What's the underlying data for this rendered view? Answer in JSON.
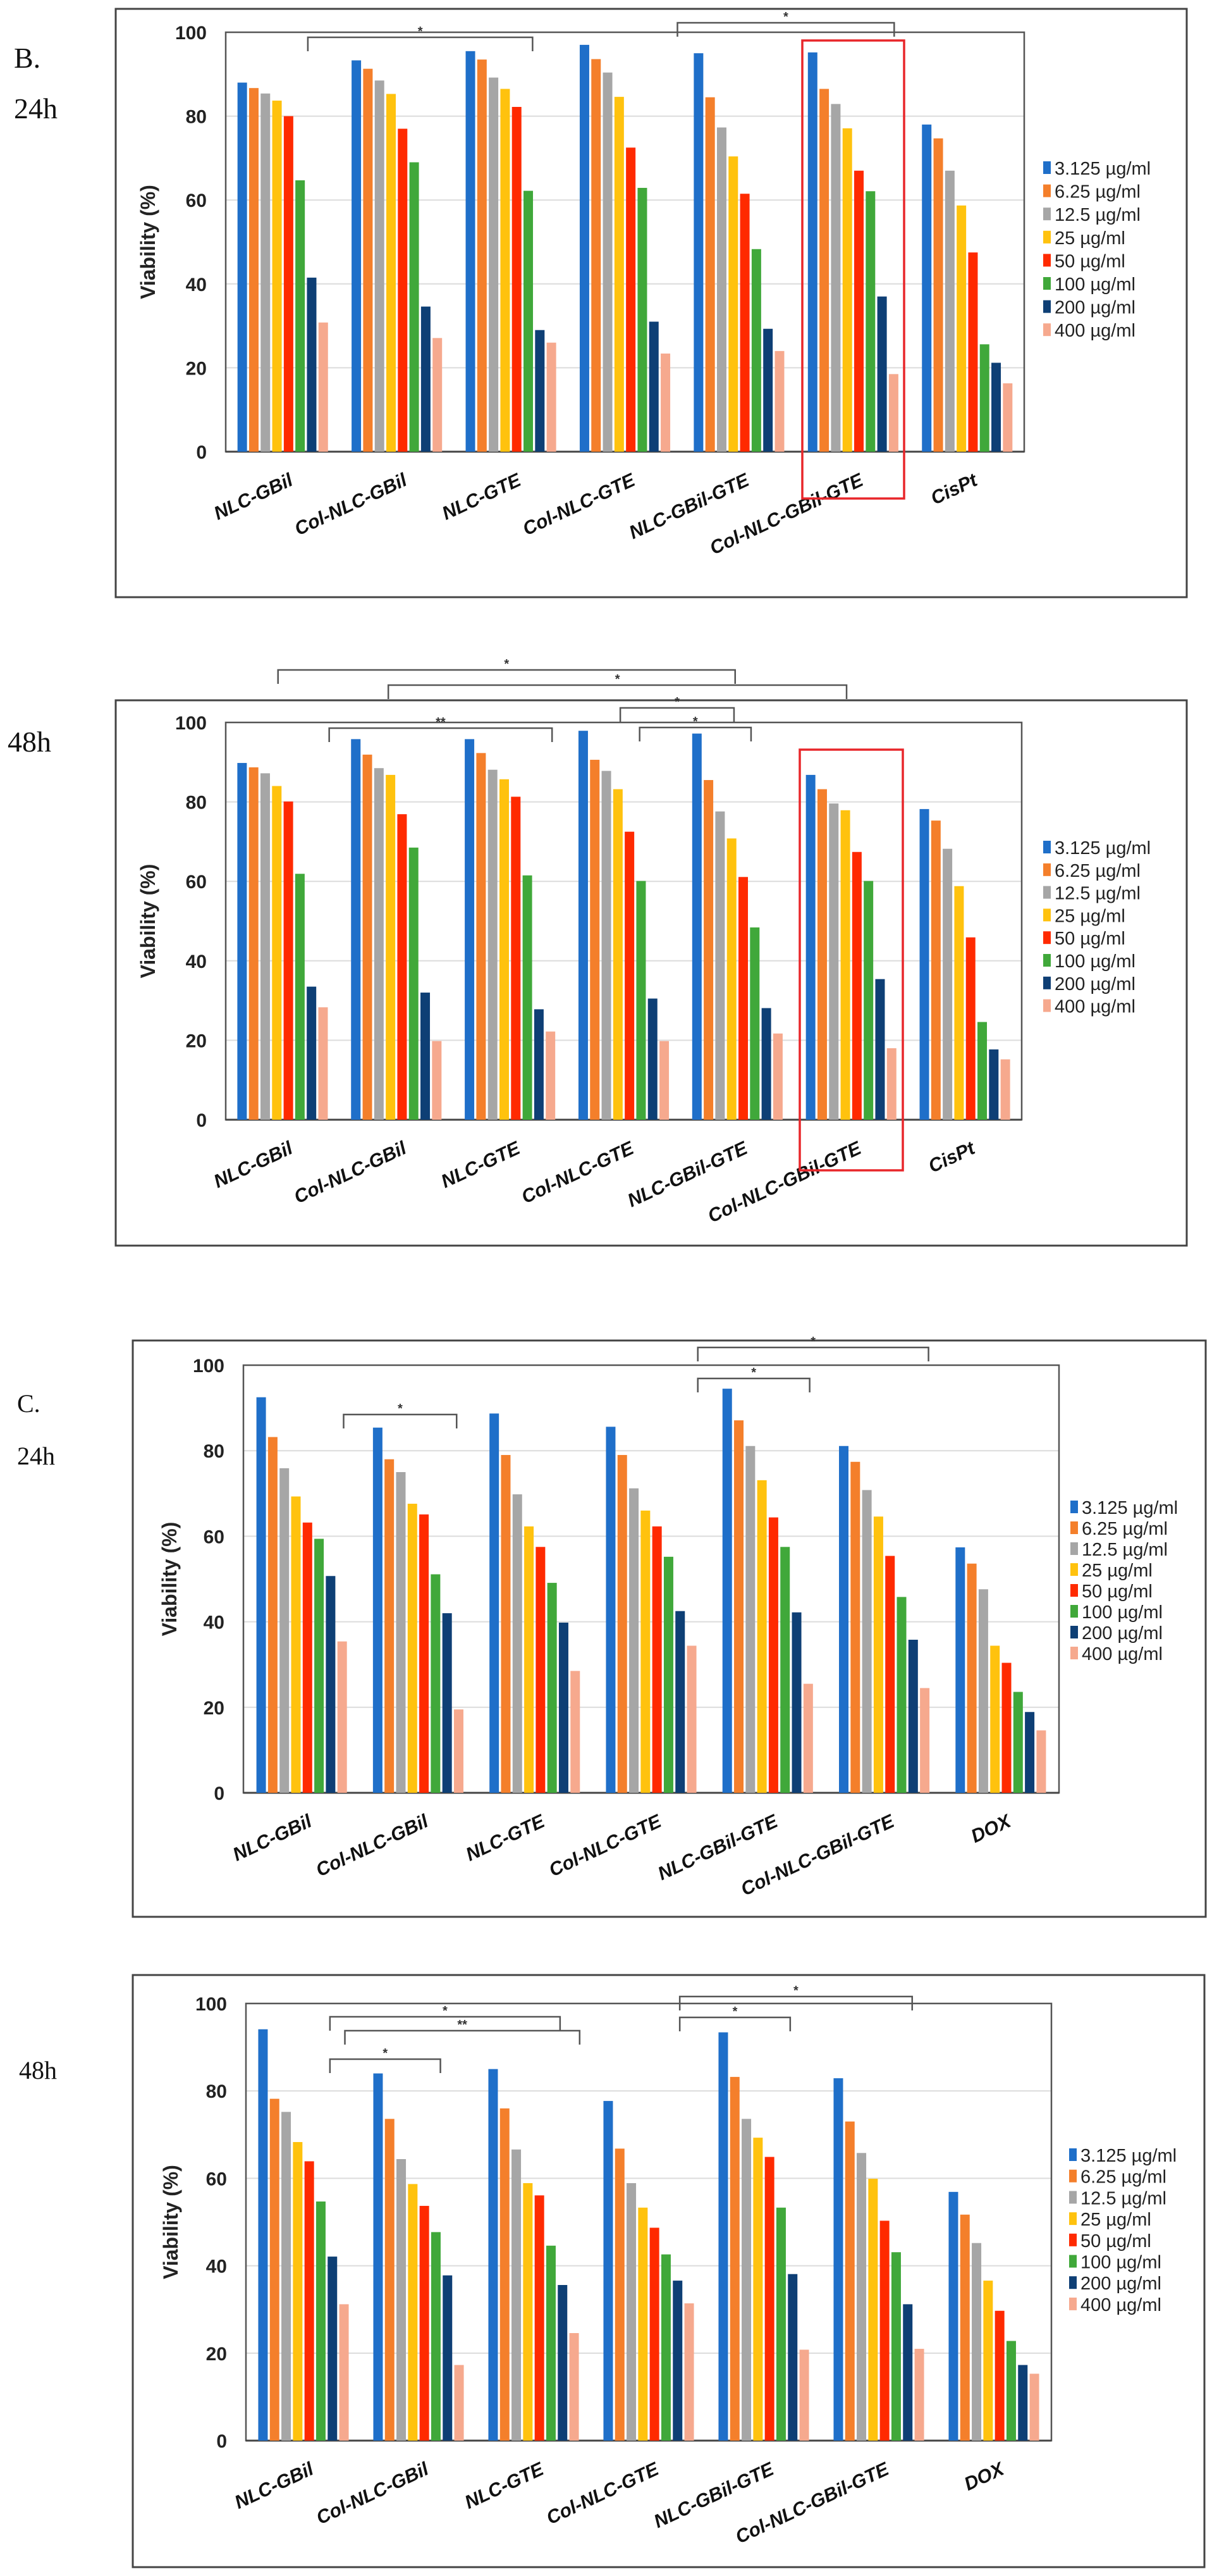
{
  "panel_labels": {
    "b": "B.",
    "b_24h": "24h",
    "b_48h": "48h",
    "c": "C.",
    "c_24h": "24h",
    "c_48h": "48h"
  },
  "chart_data": [
    {
      "type": "bar",
      "title": "",
      "panel": "B. 24h",
      "xlabel": "",
      "ylabel": "Viability (%)",
      "ylim": [
        0,
        100
      ],
      "yticks": [
        "0",
        "20",
        "40",
        "60",
        "80",
        "100"
      ],
      "grid": true,
      "legend": "right",
      "categories": [
        "NLC-GBil",
        "Col-NLC-GBil",
        "NLC-GTE",
        "Col-NLC-GTE",
        "NLC-GBil-GTE",
        "Col-NLC-GBil-GTE",
        "CisPt"
      ],
      "highlight_category": 5,
      "series": [
        {
          "name": "3.125 µg/ml",
          "color": "#1f6fc9",
          "values": [
            88,
            93.3,
            95.5,
            97,
            95,
            95.2,
            78
          ]
        },
        {
          "name": "6.25 µg/ml",
          "color": "#f47f2b",
          "values": [
            86.7,
            91.3,
            93.5,
            93.6,
            84.5,
            86.5,
            74.7
          ]
        },
        {
          "name": "12.5 µg/ml",
          "color": "#a6a6a6",
          "values": [
            85.4,
            88.5,
            89.2,
            90.4,
            77.3,
            82.9,
            67
          ]
        },
        {
          "name": "25 µg/ml",
          "color": "#ffc20e",
          "values": [
            83.7,
            85.3,
            86.5,
            84.6,
            70.4,
            77.1,
            58.7
          ]
        },
        {
          "name": "50 µg/ml",
          "color": "#ff2a00",
          "values": [
            80,
            77,
            82.2,
            72.5,
            61.5,
            67,
            47.5
          ]
        },
        {
          "name": "100 µg/ml",
          "color": "#40a83a",
          "values": [
            64.7,
            69,
            62.2,
            62.9,
            48.3,
            62.1,
            25.6
          ]
        },
        {
          "name": "200 µg/ml",
          "color": "#0e3f75",
          "values": [
            41.5,
            34.6,
            29,
            31,
            29.3,
            37,
            21.2
          ]
        },
        {
          "name": "400 µg/ml",
          "color": "#f6a98e",
          "values": [
            30.8,
            27.1,
            26,
            23.4,
            24,
            18.5,
            16.3
          ]
        }
      ],
      "brackets": [
        {
          "from": 0.72,
          "to": 2.69,
          "label": "*"
        },
        {
          "from": 3.96,
          "to": 5.86,
          "label": "*"
        }
      ]
    },
    {
      "type": "bar",
      "title": "",
      "panel": "B. 48h",
      "xlabel": "",
      "ylabel": "Viability (%)",
      "ylim": [
        0,
        100
      ],
      "yticks": [
        "0",
        "20",
        "40",
        "60",
        "80",
        "100"
      ],
      "grid": true,
      "legend": "right",
      "categories": [
        "NLC-GBil",
        "Col-NLC-GBil",
        "NLC-GTE",
        "Col-NLC-GTE",
        "NLC-GBil-GTE",
        "Col-NLC-GBil-GTE",
        "CisPt"
      ],
      "highlight_category": 5,
      "series": [
        {
          "name": "3.125 µg/ml",
          "color": "#1f6fc9",
          "values": [
            89.8,
            95.8,
            95.8,
            97.9,
            97.2,
            86.8,
            78.2
          ]
        },
        {
          "name": "6.25 µg/ml",
          "color": "#f47f2b",
          "values": [
            88.7,
            91.9,
            92.3,
            90.6,
            85.5,
            83.2,
            75.3
          ]
        },
        {
          "name": "12.5 µg/ml",
          "color": "#a6a6a6",
          "values": [
            87.2,
            88.5,
            88.1,
            87.8,
            77.6,
            79.6,
            68.2
          ]
        },
        {
          "name": "25 µg/ml",
          "color": "#ffc20e",
          "values": [
            84,
            86.8,
            85.7,
            83.2,
            70.8,
            77.9,
            58.8
          ]
        },
        {
          "name": "50 µg/ml",
          "color": "#ff2a00",
          "values": [
            80.1,
            76.9,
            81.3,
            72.5,
            61.1,
            67.4,
            45.9
          ]
        },
        {
          "name": "100 µg/ml",
          "color": "#40a83a",
          "values": [
            61.9,
            68.5,
            61.5,
            60.1,
            48.4,
            60.1,
            24.6
          ]
        },
        {
          "name": "200 µg/ml",
          "color": "#0e3f75",
          "values": [
            33.5,
            32,
            27.8,
            30.5,
            28.1,
            35.4,
            17.7
          ]
        },
        {
          "name": "400 µg/ml",
          "color": "#f6a98e",
          "values": [
            28.3,
            19.8,
            22.2,
            19.8,
            21.7,
            18,
            15.2
          ]
        }
      ],
      "brackets": [
        {
          "from": 0.46,
          "to": 4.48,
          "label": "*"
        },
        {
          "from": 1.43,
          "to": 5.46,
          "label": "*"
        },
        {
          "from": 3.47,
          "to": 4.47,
          "label": "*"
        },
        {
          "from": 0.91,
          "to": 2.87,
          "label": "**"
        },
        {
          "from": 3.64,
          "to": 4.62,
          "label": "*"
        }
      ]
    },
    {
      "type": "bar",
      "title": "",
      "panel": "C. 24h",
      "xlabel": "",
      "ylabel": "Viability (%)",
      "ylim": [
        0,
        100
      ],
      "yticks": [
        "0",
        "20",
        "40",
        "60",
        "80",
        "100"
      ],
      "grid": true,
      "legend": "right",
      "categories": [
        "NLC-GBil",
        "Col-NLC-GBil",
        "NLC-GTE",
        "Col-NLC-GTE",
        "NLC-GBil-GTE",
        "Col-NLC-GBil-GTE",
        "DOX"
      ],
      "series": [
        {
          "name": "3.125 µg/ml",
          "color": "#1f6fc9",
          "values": [
            92.5,
            85.4,
            88.7,
            85.6,
            94.5,
            81.1,
            57.4
          ]
        },
        {
          "name": "6.25 µg/ml",
          "color": "#f47f2b",
          "values": [
            83.2,
            78,
            79,
            79,
            87.1,
            77.4,
            53.6
          ]
        },
        {
          "name": "12.5 µg/ml",
          "color": "#a6a6a6",
          "values": [
            75.9,
            75,
            69.8,
            71.2,
            81.1,
            70.8,
            47.6
          ]
        },
        {
          "name": "25 µg/ml",
          "color": "#ffc20e",
          "values": [
            69.3,
            67.6,
            62.3,
            66,
            73.1,
            64.6,
            34.4
          ]
        },
        {
          "name": "50 µg/ml",
          "color": "#ff2a00",
          "values": [
            63.2,
            65.1,
            57.5,
            62.3,
            64.4,
            55.4,
            30.4
          ]
        },
        {
          "name": "100 µg/ml",
          "color": "#40a83a",
          "values": [
            59.4,
            51.1,
            49.1,
            55.2,
            57.5,
            45.8,
            23.6
          ]
        },
        {
          "name": "200 µg/ml",
          "color": "#0e3f75",
          "values": [
            50.7,
            42,
            39.8,
            42.5,
            42.2,
            35.8,
            18.9
          ]
        },
        {
          "name": "400 µg/ml",
          "color": "#f6a98e",
          "values": [
            35.4,
            19.5,
            28.5,
            34.4,
            25.5,
            24.5,
            14.6
          ]
        }
      ],
      "brackets": [
        {
          "from": 0.86,
          "to": 1.83,
          "label": "*"
        },
        {
          "from": 3.9,
          "to": 4.86,
          "label": "*"
        },
        {
          "from": 3.9,
          "to": 5.88,
          "label": "*"
        }
      ]
    },
    {
      "type": "bar",
      "title": "",
      "panel": "C. 48h",
      "xlabel": "",
      "ylabel": "Viability (%)",
      "ylim": [
        0,
        100
      ],
      "yticks": [
        "0",
        "20",
        "40",
        "60",
        "80",
        "100"
      ],
      "grid": true,
      "legend": "right",
      "categories": [
        "NLC-GBil",
        "Col-NLC-GBil",
        "NLC-GTE",
        "Col-NLC-GTE",
        "NLC-GBil-GTE",
        "Col-NLC-GBil-GTE",
        "DOX"
      ],
      "series": [
        {
          "name": "3.125 µg/ml",
          "color": "#1f6fc9",
          "values": [
            94.1,
            84,
            85,
            77.7,
            93.4,
            82.9,
            56.9
          ]
        },
        {
          "name": "6.25 µg/ml",
          "color": "#f47f2b",
          "values": [
            78.2,
            73.6,
            76,
            66.8,
            83.2,
            73,
            51.7
          ]
        },
        {
          "name": "12.5 µg/ml",
          "color": "#a6a6a6",
          "values": [
            75.2,
            64.4,
            66.6,
            58.9,
            73.6,
            65.8,
            45.2
          ]
        },
        {
          "name": "25 µg/ml",
          "color": "#ffc20e",
          "values": [
            68.3,
            58.7,
            58.9,
            53.3,
            69.3,
            59.9,
            36.6
          ]
        },
        {
          "name": "50 µg/ml",
          "color": "#ff2a00",
          "values": [
            63.9,
            53.7,
            56.1,
            48.7,
            64.9,
            50.3,
            29.7
          ]
        },
        {
          "name": "100 µg/ml",
          "color": "#40a83a",
          "values": [
            54.7,
            47.7,
            44.6,
            42.6,
            53.3,
            43.1,
            22.8
          ]
        },
        {
          "name": "200 µg/ml",
          "color": "#0e3f75",
          "values": [
            42.1,
            37.8,
            35.6,
            36.6,
            38.1,
            31.2,
            17.3
          ]
        },
        {
          "name": "400 µg/ml",
          "color": "#f6a98e",
          "values": [
            31.2,
            17.3,
            24.6,
            31.4,
            20.8,
            21,
            15.3
          ]
        }
      ],
      "brackets": [
        {
          "from": 0.73,
          "to": 2.73,
          "label": "*"
        },
        {
          "from": 0.86,
          "to": 2.9,
          "label": "**"
        },
        {
          "from": 0.73,
          "to": 1.69,
          "label": "*"
        },
        {
          "from": 3.77,
          "to": 4.73,
          "label": "*"
        },
        {
          "from": 3.77,
          "to": 5.79,
          "label": "*"
        }
      ]
    }
  ]
}
